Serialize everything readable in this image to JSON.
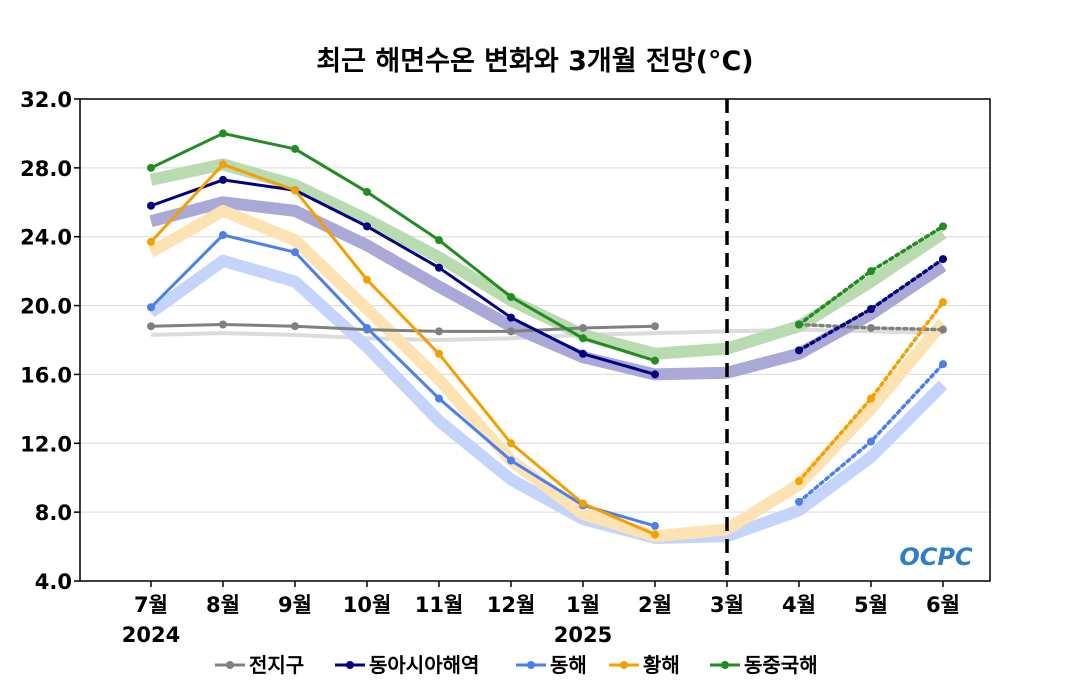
{
  "chart_data": {
    "type": "line",
    "title": "최근 해면수온 변화와 3개월 전망(°C)",
    "categories": [
      "7월",
      "8월",
      "9월",
      "10월",
      "11월",
      "12월",
      "1월",
      "2월",
      "3월",
      "4월",
      "5월",
      "6월"
    ],
    "year_labels": [
      {
        "category": "7월",
        "label": "2024"
      },
      {
        "category": "1월",
        "label": "2025"
      }
    ],
    "forecast_divider_category": "3월",
    "ylim": [
      4.0,
      32.0
    ],
    "yticks": [
      "4.0",
      "8.0",
      "12.0",
      "16.0",
      "20.0",
      "24.0",
      "28.0",
      "32.0"
    ],
    "grid": true,
    "legend_position": "bottom",
    "logo_text": "OCPC",
    "series": [
      {
        "name": "전지구",
        "color": "#808080",
        "band_color": "#dcdcdc",
        "observed": [
          18.8,
          18.9,
          18.8,
          18.6,
          18.5,
          18.5,
          18.7,
          18.8,
          null,
          null,
          null,
          null
        ],
        "forecast": [
          null,
          null,
          null,
          null,
          null,
          null,
          null,
          null,
          null,
          18.9,
          18.7,
          18.6
        ],
        "climatology": [
          18.3,
          18.4,
          18.3,
          18.1,
          18.0,
          18.1,
          18.3,
          18.4,
          18.5,
          18.6,
          18.5,
          18.4
        ]
      },
      {
        "name": "동아시아해역",
        "color": "#000080",
        "band_color": "#aaa8d6",
        "observed": [
          25.8,
          27.3,
          26.7,
          24.6,
          22.2,
          19.3,
          17.2,
          16.0,
          null,
          null,
          null,
          null
        ],
        "forecast": [
          null,
          null,
          null,
          null,
          null,
          null,
          null,
          null,
          null,
          17.4,
          19.8,
          22.7
        ],
        "climatology": [
          24.9,
          26.0,
          25.5,
          23.5,
          21.1,
          18.8,
          17.0,
          16.0,
          16.1,
          17.2,
          19.5,
          22.3
        ]
      },
      {
        "name": "동해",
        "color": "#4a7ff0",
        "band_color": "#c4d4fb",
        "observed": [
          19.9,
          24.1,
          23.1,
          18.7,
          14.6,
          11.0,
          8.4,
          7.2,
          null,
          null,
          null,
          null
        ],
        "forecast": [
          null,
          null,
          null,
          null,
          null,
          null,
          null,
          null,
          null,
          8.6,
          12.1,
          16.6
        ],
        "climatology": [
          19.6,
          22.6,
          21.4,
          17.6,
          13.3,
          9.9,
          7.6,
          6.5,
          6.6,
          8.1,
          11.2,
          15.4
        ]
      },
      {
        "name": "황해",
        "color": "#f5a000",
        "band_color": "#fde3b3",
        "observed": [
          23.7,
          28.2,
          26.7,
          21.5,
          17.2,
          12.0,
          8.5,
          6.7,
          null,
          null,
          null,
          null
        ],
        "forecast": [
          null,
          null,
          null,
          null,
          null,
          null,
          null,
          null,
          null,
          9.8,
          14.6,
          20.2
        ],
        "climatology": [
          23.1,
          25.5,
          23.8,
          19.8,
          15.7,
          11.0,
          7.9,
          6.6,
          7.0,
          9.6,
          14.0,
          19.0
        ]
      },
      {
        "name": "동중국해",
        "color": "#228b22",
        "band_color": "#b8dbb0",
        "observed": [
          28.0,
          30.0,
          29.1,
          26.6,
          23.8,
          20.5,
          18.1,
          16.8,
          null,
          null,
          null,
          null
        ],
        "forecast": [
          null,
          null,
          null,
          null,
          null,
          null,
          null,
          null,
          null,
          18.9,
          22.0,
          24.6
        ],
        "climatology": [
          27.3,
          28.2,
          27.0,
          25.0,
          22.8,
          20.3,
          18.3,
          17.2,
          17.5,
          18.8,
          21.4,
          24.2
        ]
      }
    ]
  }
}
